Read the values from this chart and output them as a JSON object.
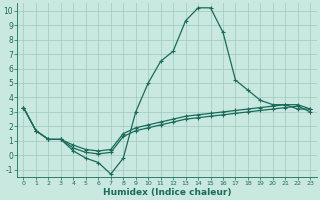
{
  "xlabel": "Humidex (Indice chaleur)",
  "xlim": [
    -0.5,
    23.5
  ],
  "ylim": [
    -1.5,
    10.5
  ],
  "xticks": [
    0,
    1,
    2,
    3,
    4,
    5,
    6,
    7,
    8,
    9,
    10,
    11,
    12,
    13,
    14,
    15,
    16,
    17,
    18,
    19,
    20,
    21,
    22,
    23
  ],
  "yticks": [
    -1,
    0,
    1,
    2,
    3,
    4,
    5,
    6,
    7,
    8,
    9,
    10
  ],
  "bg_color": "#c8e8e0",
  "grid_color": "#a0c8c0",
  "line_color": "#1a6b5a",
  "line1_x": [
    0,
    1,
    2,
    3,
    4,
    5,
    6,
    7,
    8,
    9,
    10,
    11,
    12,
    13,
    14,
    15,
    16,
    17,
    18,
    19,
    20,
    21,
    22,
    23
  ],
  "line1_y": [
    3.3,
    1.7,
    1.1,
    1.1,
    0.3,
    -0.2,
    -0.5,
    -1.3,
    -0.2,
    3.0,
    5.0,
    6.5,
    7.2,
    9.3,
    10.2,
    10.2,
    8.5,
    5.2,
    4.5,
    3.8,
    3.5,
    3.5,
    3.2,
    3.2
  ],
  "line2_x": [
    0,
    1,
    2,
    3,
    4,
    5,
    6,
    7,
    8,
    9,
    10,
    11,
    12,
    13,
    14,
    15,
    16,
    17,
    18,
    19,
    20,
    21,
    22,
    23
  ],
  "line2_y": [
    3.3,
    1.7,
    1.1,
    1.1,
    0.7,
    0.4,
    0.3,
    0.4,
    1.5,
    1.9,
    2.1,
    2.3,
    2.5,
    2.7,
    2.8,
    2.9,
    3.0,
    3.1,
    3.2,
    3.3,
    3.4,
    3.5,
    3.5,
    3.2
  ],
  "line3_x": [
    0,
    1,
    2,
    3,
    4,
    5,
    6,
    7,
    8,
    9,
    10,
    11,
    12,
    13,
    14,
    15,
    16,
    17,
    18,
    19,
    20,
    21,
    22,
    23
  ],
  "line3_y": [
    3.3,
    1.7,
    1.1,
    1.1,
    0.5,
    0.2,
    0.1,
    0.2,
    1.3,
    1.7,
    1.9,
    2.1,
    2.3,
    2.5,
    2.6,
    2.7,
    2.8,
    2.9,
    3.0,
    3.1,
    3.2,
    3.3,
    3.4,
    3.0
  ]
}
